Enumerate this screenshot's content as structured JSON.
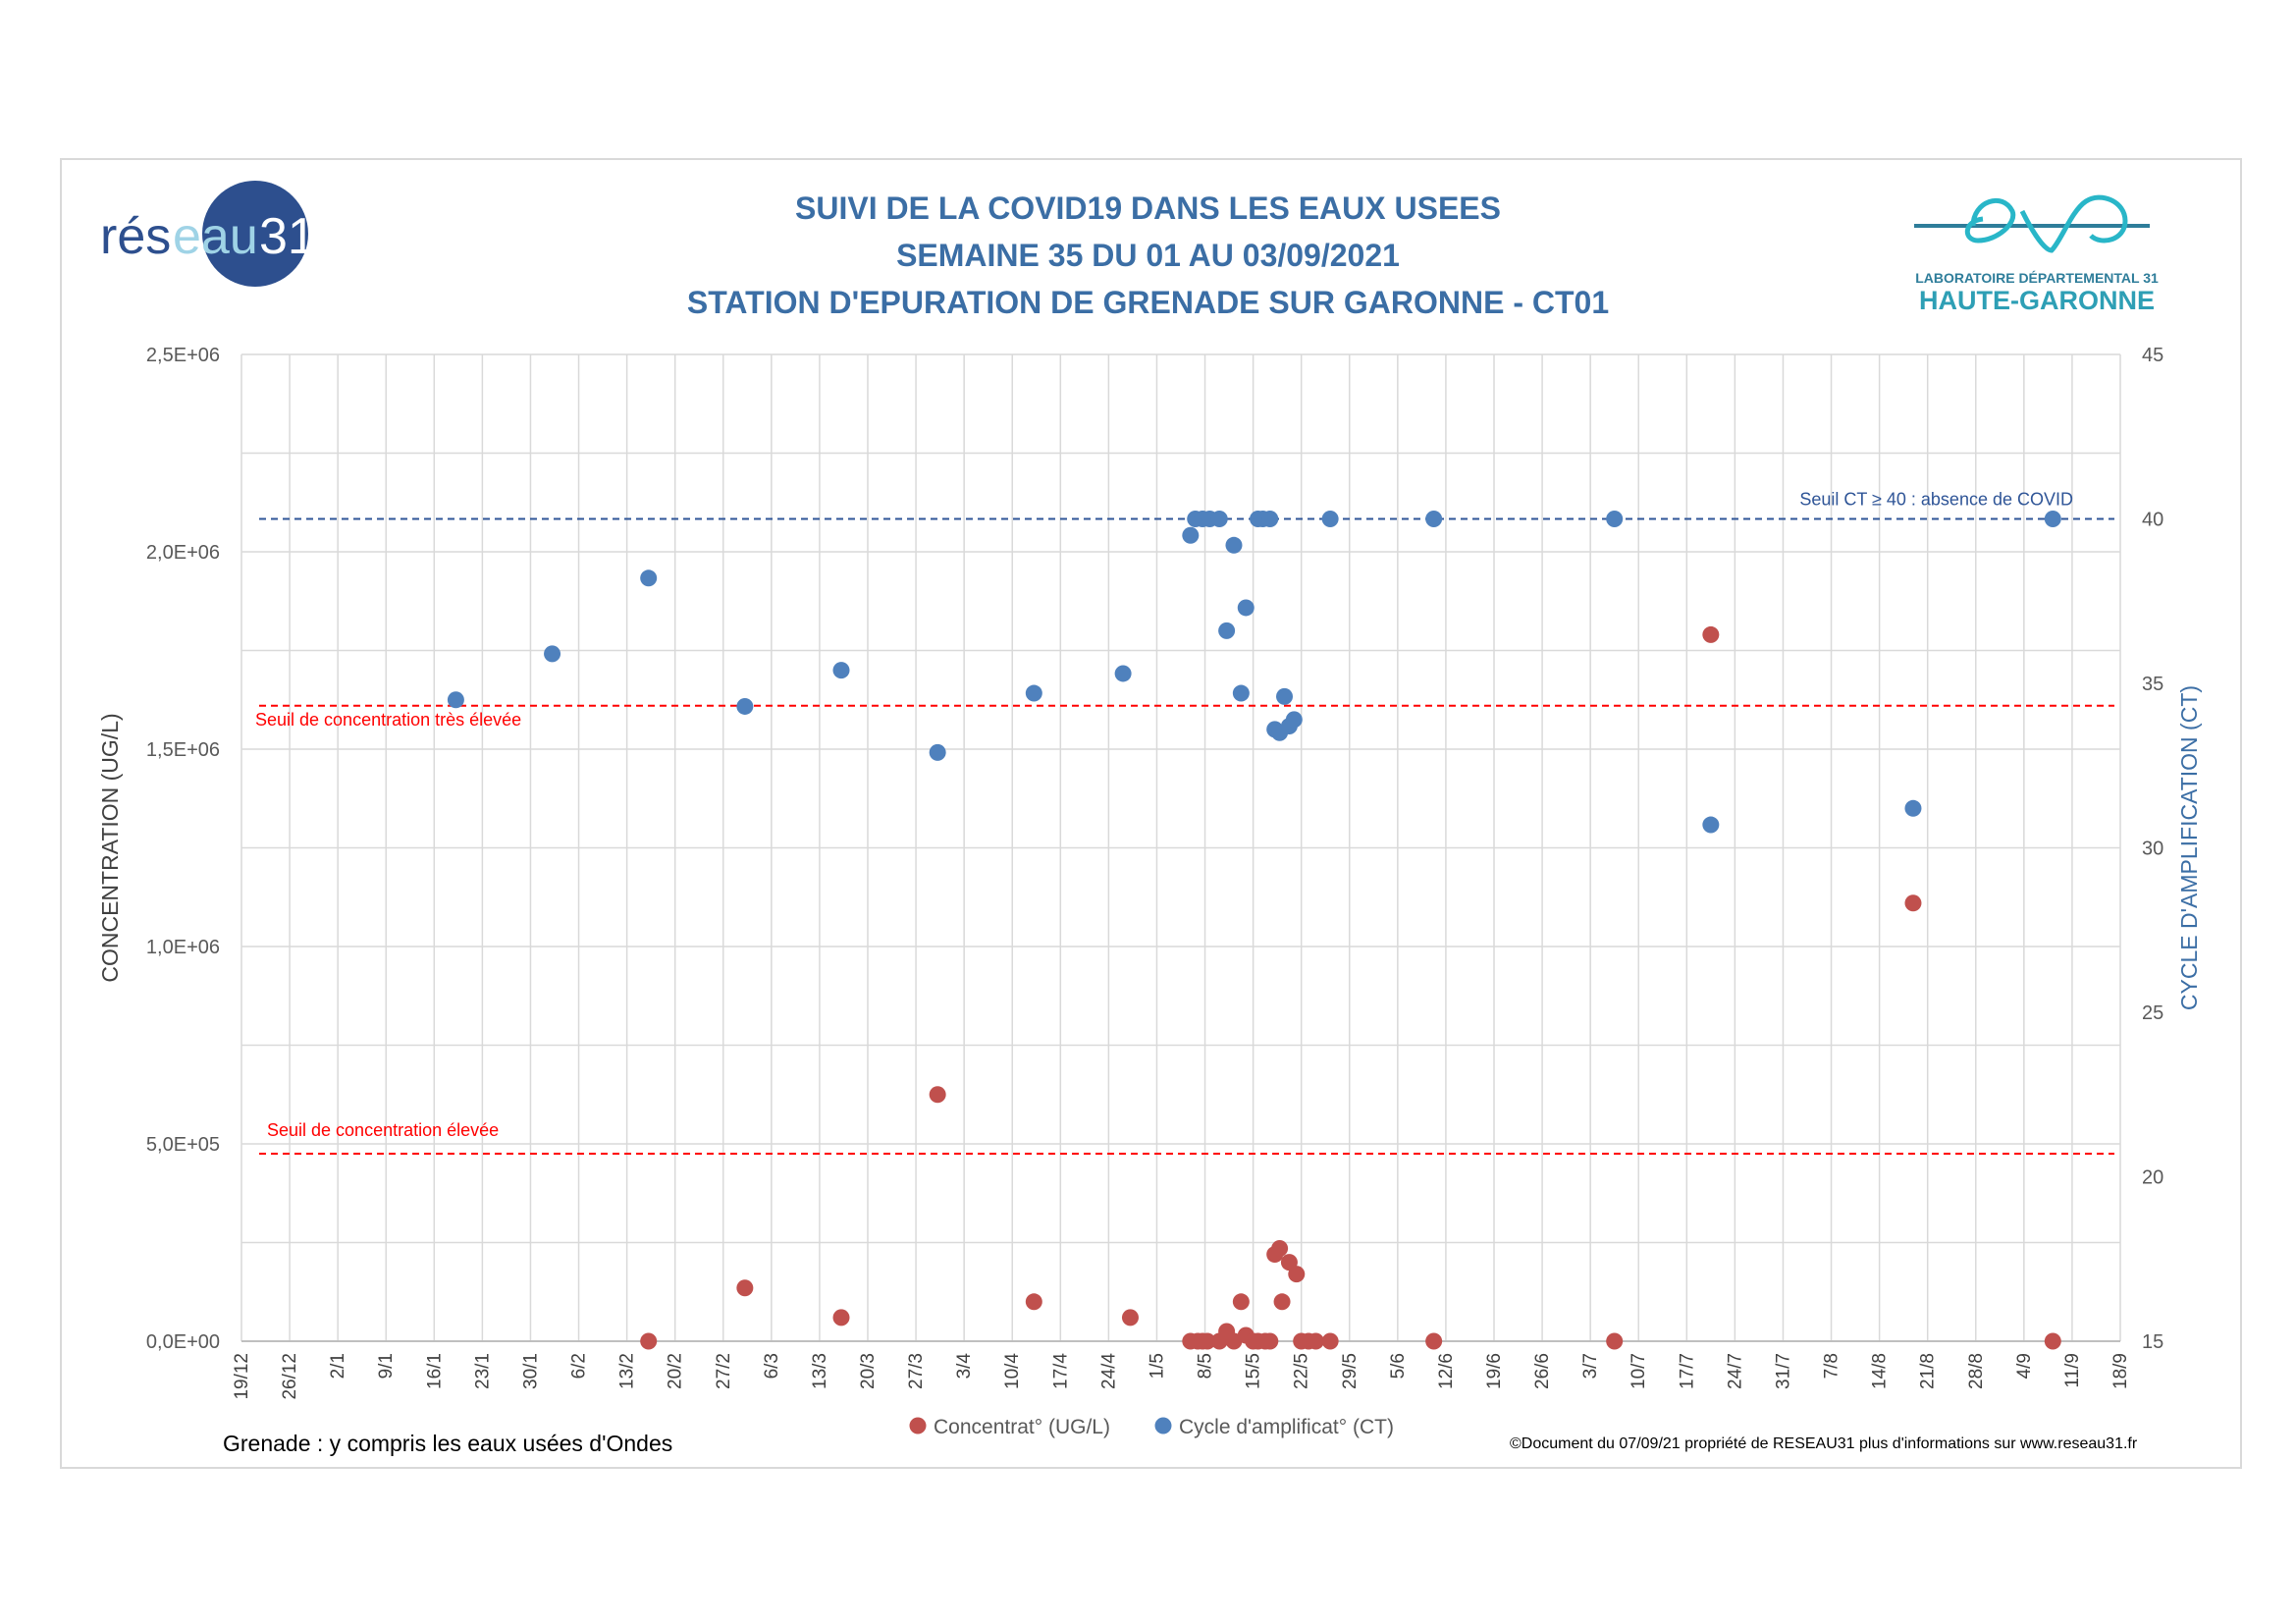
{
  "header": {
    "title_line1": "SUIVI DE LA COVID19 DANS LES EAUX USEES",
    "title_line2": "SEMAINE 35 DU 01 AU 03/09/2021",
    "title_line3": "STATION D'EPURATION DE GRENADE SUR GARONNE - CT01"
  },
  "logos": {
    "reseau31": {
      "part1": "rés",
      "part2": "eau",
      "part3": "31"
    },
    "eva": {
      "line1": "LABORATOIRE DÉPARTEMENTAL 31",
      "line2": "HAUTE-GARONNE"
    }
  },
  "footer": {
    "left_note": "Grenade : y compris les eaux usées d'Ondes",
    "copyright": "©Document du 07/09/21 propriété de RESEAU31 plus d'informations sur www.reseau31.fr"
  },
  "colors": {
    "concentration": "#c0504d",
    "ct": "#4f81bd",
    "title": "#3b6ea5",
    "threshold_red": "#ff0000",
    "threshold_blue": "#2f5597",
    "grid": "#d9d9d9"
  },
  "chart_data": {
    "type": "scatter",
    "ylabel": "CONCENTRATION (UG/L)",
    "y2label": "CYCLE D'AMPLIFICATION (CT)",
    "ylim": [
      0,
      2500000
    ],
    "y2lim": [
      15,
      45
    ],
    "y_ticks": [
      0,
      500000,
      1000000,
      1500000,
      2000000,
      2500000
    ],
    "y_tick_labels": [
      "0,0E+00",
      "5,0E+05",
      "1,0E+06",
      "1,5E+06",
      "2,0E+06",
      "2,5E+06"
    ],
    "y2_ticks": [
      15,
      20,
      25,
      30,
      35,
      40,
      45
    ],
    "y2_tick_labels": [
      "15",
      "20",
      "25",
      "30",
      "35",
      "40",
      "45"
    ],
    "x_tick_labels": [
      "19/12",
      "26/12",
      "2/1",
      "9/1",
      "16/1",
      "23/1",
      "30/1",
      "6/2",
      "13/2",
      "20/2",
      "27/2",
      "6/3",
      "13/3",
      "20/3",
      "27/3",
      "3/4",
      "10/4",
      "17/4",
      "24/4",
      "1/5",
      "8/5",
      "15/5",
      "22/5",
      "29/5",
      "5/6",
      "12/6",
      "19/6",
      "26/6",
      "3/7",
      "10/7",
      "17/7",
      "24/7",
      "31/7",
      "7/8",
      "14/8",
      "21/8",
      "28/8",
      "4/9",
      "11/9",
      "18/9"
    ],
    "x_unit": "week index from 19/12",
    "grid": true,
    "legend_position": "bottom",
    "series": [
      {
        "name": "Concentrat° (UG/L)",
        "axis": "left",
        "color": "#c0504d",
        "x": [
          8.45,
          10.45,
          12.45,
          14.45,
          16.45,
          18.45,
          19.7,
          19.85,
          19.95,
          20.05,
          20.3,
          20.45,
          20.6,
          20.75,
          20.85,
          21.0,
          21.1,
          21.25,
          21.35,
          21.45,
          21.55,
          21.6,
          21.75,
          21.9,
          22.0,
          22.15,
          22.3,
          22.6,
          24.75,
          28.5,
          30.5,
          34.7,
          37.6
        ],
        "y": [
          0,
          135000,
          60000,
          625000,
          100000,
          60000,
          0,
          0,
          0,
          0,
          0,
          25000,
          0,
          100000,
          15000,
          0,
          0,
          0,
          0,
          220000,
          235000,
          100000,
          200000,
          170000,
          0,
          0,
          0,
          0,
          0,
          0,
          1790000,
          1110000,
          0
        ]
      },
      {
        "name": "Cycle d'amplificat° (CT)",
        "axis": "right",
        "color": "#4f81bd",
        "x": [
          4.45,
          6.45,
          8.45,
          10.45,
          12.45,
          14.45,
          16.45,
          18.3,
          19.7,
          19.8,
          19.95,
          20.1,
          20.3,
          20.45,
          20.6,
          20.75,
          20.85,
          21.1,
          21.2,
          21.35,
          21.45,
          21.55,
          21.65,
          21.75,
          21.85,
          22.6,
          24.75,
          28.5,
          30.5,
          34.7,
          37.6
        ],
        "y": [
          34.5,
          35.9,
          38.2,
          34.3,
          35.4,
          32.9,
          34.7,
          35.3,
          39.5,
          40.0,
          40.0,
          40.0,
          40.0,
          36.6,
          39.2,
          34.7,
          37.3,
          40.0,
          40.0,
          40.0,
          33.6,
          33.5,
          34.6,
          33.7,
          33.9,
          40.0,
          40.0,
          40.0,
          30.7,
          31.2,
          40.0
        ]
      }
    ],
    "thresholds": [
      {
        "label": "Seuil de concentration très élevée",
        "axis": "left",
        "value": 1610000,
        "color": "#ff0000"
      },
      {
        "label": "Seuil de concentration élevée",
        "axis": "left",
        "value": 475000,
        "color": "#ff0000"
      },
      {
        "label": "Seuil CT ≥ 40 : absence de COVID",
        "axis": "right",
        "value": 40,
        "color": "#2f5597"
      }
    ]
  }
}
